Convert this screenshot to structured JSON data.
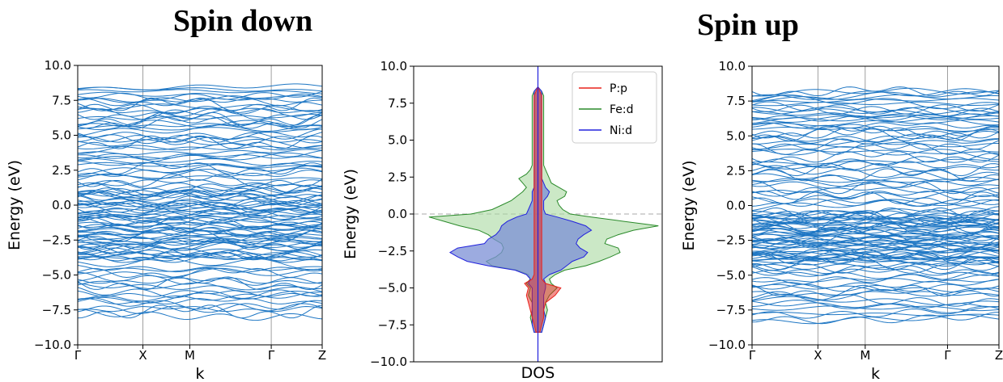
{
  "figure": {
    "titles": [
      "Spin down",
      "Spin up"
    ]
  },
  "colors": {
    "band": "#1f77c4",
    "pp": "#e8221b",
    "fed": "#2a8a2a",
    "nid": "#2222dd",
    "fed_fill": "#a8d8a0",
    "nid_fill": "#7b8fd6",
    "fermi": "#bbbbbb",
    "kline": "#888888"
  },
  "chart_data": [
    {
      "type": "line",
      "panel": "spin-down-bands",
      "title": "Spin down",
      "xlabel": "k",
      "ylabel": "Energy (eV)",
      "ylim": [
        -10,
        10
      ],
      "yticks": [
        "10.0",
        "7.5",
        "5.0",
        "2.5",
        "0.0",
        "−2.5",
        "−5.0",
        "−7.5",
        "−10.0"
      ],
      "kpoints": [
        {
          "label": "Γ",
          "pos": 0.0
        },
        {
          "label": "X",
          "pos": 0.32
        },
        {
          "label": "M",
          "pos": 0.55
        },
        {
          "label": "Γ",
          "pos": 0.95
        },
        {
          "label": "Z",
          "pos": 1.2
        }
      ],
      "grid": "vertical lines at k-points",
      "bands": {
        "groups": [
          {
            "emin": -7.8,
            "emax": -4.3,
            "count": 20
          },
          {
            "emin": -3.9,
            "emax": 1.3,
            "count": 60
          },
          {
            "emin": 1.6,
            "emax": 4.5,
            "count": 18
          },
          {
            "emin": 4.7,
            "emax": 8.4,
            "count": 26
          }
        ]
      }
    },
    {
      "type": "area",
      "panel": "dos",
      "xlabel": "DOS",
      "ylabel": "Energy (eV)",
      "ylim": [
        -10,
        10
      ],
      "xlim": [
        -6.5,
        6.5
      ],
      "yticks": [
        "10.0",
        "7.5",
        "5.0",
        "2.5",
        "0.0",
        "−2.5",
        "−5.0",
        "−7.5",
        "−10.0"
      ],
      "fermi_level": 0.0,
      "legend": {
        "placement": "top-right",
        "entries": [
          "P:p",
          "Fe:d",
          "Ni:d"
        ]
      },
      "energy": [
        -8.0,
        -7.5,
        -7.0,
        -6.5,
        -6.0,
        -5.5,
        -5.0,
        -4.7,
        -4.4,
        -4.1,
        -3.8,
        -3.5,
        -3.2,
        -2.9,
        -2.6,
        -2.3,
        -2.0,
        -1.7,
        -1.4,
        -1.1,
        -0.8,
        -0.5,
        -0.2,
        0.0,
        0.3,
        0.6,
        0.9,
        1.2,
        1.5,
        1.8,
        2.1,
        2.4,
        2.7,
        3.0,
        3.3,
        3.6,
        4.0,
        4.5,
        5.0,
        5.5,
        6.0,
        6.5,
        7.0,
        7.5,
        8.0,
        8.3,
        8.6
      ],
      "series": [
        {
          "name": "Fe:d",
          "right": [
            0.2,
            0.3,
            0.4,
            0.5,
            0.4,
            0.6,
            1.0,
            0.7,
            0.6,
            0.9,
            1.4,
            2.5,
            3.2,
            3.8,
            4.3,
            4.2,
            3.5,
            3.6,
            4.2,
            5.0,
            6.3,
            4.5,
            2.8,
            1.7,
            1.3,
            1.1,
            1.0,
            1.4,
            1.5,
            1.1,
            0.7,
            0.6,
            0.5,
            0.4,
            0.3,
            0.3,
            0.3,
            0.3,
            0.3,
            0.3,
            0.3,
            0.3,
            0.3,
            0.3,
            0.3,
            0.2,
            0.0
          ],
          "left": [
            0.2,
            0.3,
            0.4,
            0.3,
            0.3,
            0.5,
            0.4,
            0.6,
            0.4,
            0.5,
            1.1,
            2.4,
            2.7,
            2.2,
            1.9,
            1.8,
            1.9,
            2.3,
            2.6,
            3.1,
            4.1,
            4.9,
            5.7,
            3.5,
            2.4,
            1.9,
            1.4,
            1.1,
            0.8,
            0.6,
            0.8,
            1.0,
            0.6,
            0.4,
            0.3,
            0.3,
            0.3,
            0.3,
            0.3,
            0.3,
            0.3,
            0.3,
            0.3,
            0.3,
            0.3,
            0.2,
            0.0
          ]
        },
        {
          "name": "Ni:d",
          "right": [
            0.2,
            0.3,
            0.4,
            0.3,
            0.3,
            0.3,
            0.4,
            0.4,
            0.3,
            0.6,
            1.2,
            1.5,
            1.8,
            2.4,
            2.6,
            2.2,
            2.0,
            2.1,
            2.4,
            2.8,
            2.5,
            1.8,
            1.0,
            0.4,
            0.3,
            0.3,
            0.3,
            0.5,
            0.6,
            0.4,
            0.3,
            0.2,
            0.2,
            0.2,
            0.2,
            0.2,
            0.2,
            0.2,
            0.2,
            0.2,
            0.2,
            0.2,
            0.2,
            0.2,
            0.2,
            0.2,
            0.0
          ],
          "left": [
            0.2,
            0.3,
            0.3,
            0.3,
            0.3,
            0.3,
            0.3,
            0.5,
            0.4,
            0.6,
            1.2,
            2.6,
            3.7,
            4.2,
            4.6,
            4.2,
            2.8,
            2.6,
            2.2,
            2.0,
            1.9,
            1.6,
            1.1,
            0.6,
            0.5,
            0.4,
            0.3,
            0.3,
            0.3,
            0.2,
            0.2,
            0.2,
            0.2,
            0.2,
            0.2,
            0.2,
            0.2,
            0.2,
            0.2,
            0.2,
            0.2,
            0.2,
            0.2,
            0.2,
            0.2,
            0.2,
            0.0
          ]
        },
        {
          "name": "P:p",
          "right": [
            0.1,
            0.2,
            0.3,
            0.3,
            0.4,
            0.9,
            1.2,
            0.4,
            0.2,
            0.2,
            0.2,
            0.2,
            0.2,
            0.2,
            0.2,
            0.2,
            0.2,
            0.2,
            0.2,
            0.2,
            0.2,
            0.2,
            0.2,
            0.2,
            0.2,
            0.2,
            0.2,
            0.2,
            0.2,
            0.2,
            0.2,
            0.2,
            0.2,
            0.2,
            0.2,
            0.2,
            0.2,
            0.2,
            0.2,
            0.2,
            0.2,
            0.2,
            0.2,
            0.2,
            0.2,
            0.1,
            0.0
          ],
          "left": [
            0.1,
            0.2,
            0.3,
            0.4,
            0.5,
            0.6,
            0.5,
            0.7,
            0.3,
            0.2,
            0.2,
            0.2,
            0.2,
            0.2,
            0.2,
            0.2,
            0.2,
            0.2,
            0.2,
            0.2,
            0.2,
            0.2,
            0.2,
            0.2,
            0.2,
            0.2,
            0.2,
            0.2,
            0.2,
            0.2,
            0.2,
            0.2,
            0.2,
            0.2,
            0.2,
            0.2,
            0.2,
            0.2,
            0.2,
            0.2,
            0.2,
            0.2,
            0.2,
            0.2,
            0.2,
            0.1,
            0.0
          ]
        }
      ]
    },
    {
      "type": "line",
      "panel": "spin-up-bands",
      "title": "Spin up",
      "xlabel": "k",
      "ylabel": "Energy (eV)",
      "ylim": [
        -10,
        10
      ],
      "yticks": [
        "10.0",
        "7.5",
        "5.0",
        "2.5",
        "0.0",
        "−2.5",
        "−5.0",
        "−7.5",
        "−10.0"
      ],
      "kpoints": [
        {
          "label": "Γ",
          "pos": 0.0
        },
        {
          "label": "X",
          "pos": 0.32
        },
        {
          "label": "M",
          "pos": 0.55
        },
        {
          "label": "Γ",
          "pos": 0.95
        },
        {
          "label": "Z",
          "pos": 1.2
        }
      ],
      "grid": "vertical lines at k-points",
      "bands": {
        "groups": [
          {
            "emin": -8.2,
            "emax": -4.6,
            "count": 20
          },
          {
            "emin": -4.3,
            "emax": -0.4,
            "count": 58
          },
          {
            "emin": 0.0,
            "emax": 4.6,
            "count": 26
          },
          {
            "emin": 4.8,
            "emax": 8.2,
            "count": 26
          }
        ]
      }
    }
  ]
}
